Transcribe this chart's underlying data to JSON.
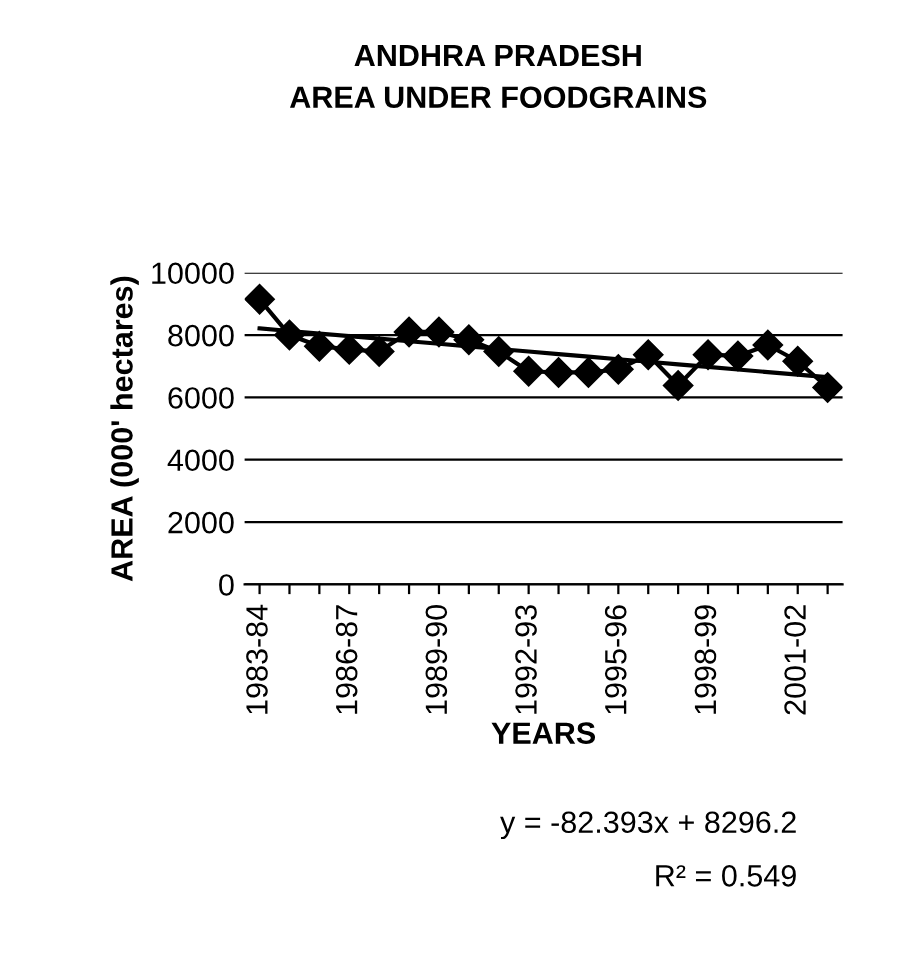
{
  "chart_data": {
    "type": "line",
    "title": "ANDHRA PRADESH\nAREA UNDER FOODGRAINS",
    "xlabel": "YEARS",
    "ylabel": "AREA (000' hectares)",
    "categories": [
      "1983-84",
      null,
      null,
      "1986-87",
      null,
      null,
      "1989-90",
      null,
      null,
      "1992-93",
      null,
      null,
      "1995-96",
      null,
      null,
      "1998-99",
      null,
      null,
      "2001-02",
      null
    ],
    "series": [
      {
        "color": "#000000",
        "marker": "diamond",
        "values": [
          9150,
          8000,
          7640,
          7540,
          7470,
          8100,
          8100,
          7850,
          7470,
          6840,
          6800,
          6800,
          6900,
          7370,
          6380,
          7370,
          7330,
          7680,
          7160,
          6320
        ]
      },
      {
        "color": "#000000",
        "marker": "none",
        "values": [
          8214,
          8131,
          8049,
          7967,
          7884,
          7802,
          7720,
          7637,
          7555,
          7472,
          7390,
          7307,
          7225,
          7143,
          7060,
          6978,
          6895,
          6813,
          6731,
          6648
        ]
      }
    ],
    "ylim": [
      0,
      10000
    ],
    "yticks": [
      0,
      2000,
      4000,
      6000,
      8000,
      10000
    ],
    "grid": "y",
    "legend": false,
    "annotations": [
      "y = -82.393x + 8296.2",
      "R² = 0.549"
    ]
  }
}
